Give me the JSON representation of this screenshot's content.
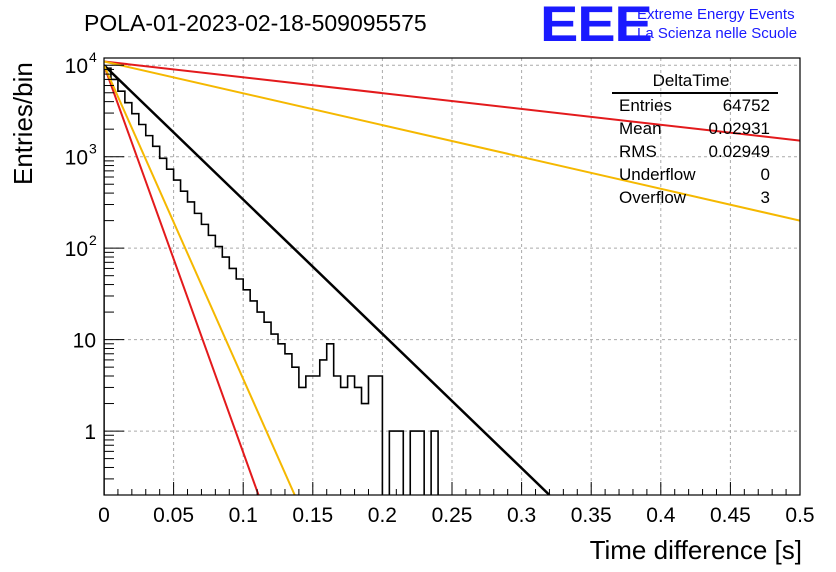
{
  "title": "POLA-01-2023-02-18-509095575",
  "logo": {
    "mark": "EEE",
    "line1": "Extreme Energy Events",
    "line2": "La Scienza nelle Scuole"
  },
  "stats": {
    "name": "DeltaTime",
    "rows": [
      {
        "label": "Entries",
        "value": "64752"
      },
      {
        "label": "Mean",
        "value": "0.02931"
      },
      {
        "label": "RMS",
        "value": "0.02949"
      },
      {
        "label": "Underflow",
        "value": "0"
      },
      {
        "label": "Overflow",
        "value": "3"
      }
    ]
  },
  "colors": {
    "histogram": "#000000",
    "fit": "#000000",
    "red": "#e31a1c",
    "yellow": "#f5b800",
    "grid": "#aaaaaa"
  },
  "chart_data": {
    "type": "line",
    "title": "POLA-01-2023-02-18-509095575",
    "xlabel": "Time difference [s]",
    "ylabel": "Entries/bin",
    "xlim": [
      0,
      0.5
    ],
    "ylim": [
      0.2,
      12000
    ],
    "yscale": "log",
    "grid": true,
    "legend": "top-right",
    "x_ticks": [
      "0",
      "0.05",
      "0.1",
      "0.15",
      "0.2",
      "0.25",
      "0.3",
      "0.35",
      "0.4",
      "0.45",
      "0.5"
    ],
    "y_ticks": [
      {
        "value": 1,
        "base": "1",
        "exp": ""
      },
      {
        "value": 10,
        "base": "10",
        "exp": ""
      },
      {
        "value": 100,
        "base": "10",
        "exp": "2"
      },
      {
        "value": 1000,
        "base": "10",
        "exp": "3"
      },
      {
        "value": 10000,
        "base": "10",
        "exp": "4"
      }
    ],
    "histogram": {
      "bin_width": 0.005,
      "values": [
        9300,
        7000,
        5200,
        3900,
        2950,
        2250,
        1700,
        1300,
        960,
        730,
        555,
        420,
        320,
        240,
        182,
        138,
        104,
        80,
        60,
        46,
        35,
        26.5,
        20,
        15.5,
        11.5,
        9,
        7,
        5,
        3,
        4,
        4,
        6,
        9,
        4,
        3,
        4,
        3,
        2,
        4,
        4,
        0,
        1,
        1,
        0,
        1,
        1,
        0,
        1,
        0
      ]
    },
    "lines": [
      {
        "color": "#000000",
        "width": 2.5,
        "points": [
          [
            0,
            10000
          ],
          [
            0.32,
            0.2
          ]
        ]
      },
      {
        "color": "#e31a1c",
        "width": 2,
        "points": [
          [
            0,
            10000
          ],
          [
            0.111,
            0.2
          ]
        ]
      },
      {
        "color": "#f5b800",
        "width": 2,
        "points": [
          [
            0,
            10000
          ],
          [
            0.137,
            0.2
          ]
        ]
      },
      {
        "color": "#e31a1c",
        "width": 2,
        "points": [
          [
            0,
            11000
          ],
          [
            0.5,
            1500
          ]
        ]
      },
      {
        "color": "#f5b800",
        "width": 2,
        "points": [
          [
            0,
            11000
          ],
          [
            0.5,
            200
          ]
        ]
      }
    ]
  }
}
